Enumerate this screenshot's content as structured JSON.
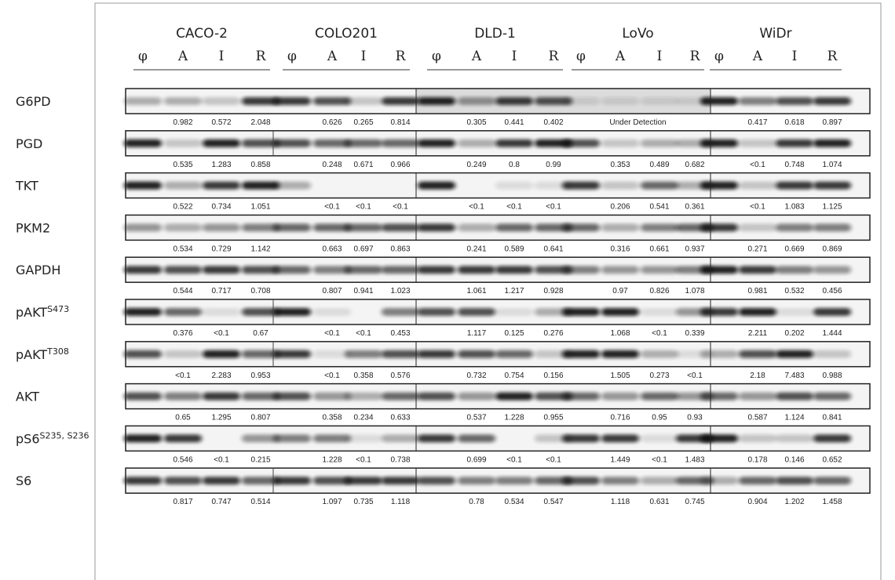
{
  "header": {
    "cell_lines": [
      {
        "name": "CACO-2",
        "lanes": [
          "φ",
          "A",
          "I",
          "R"
        ]
      },
      {
        "name": "COLO201",
        "lanes": [
          "φ",
          "A",
          "I",
          "R"
        ]
      },
      {
        "name": "DLD-1",
        "lanes": [
          "φ",
          "A",
          "I",
          "R"
        ]
      },
      {
        "name": "LoVo",
        "lanes": [
          "φ",
          "A",
          "I",
          "R"
        ]
      },
      {
        "name": "WiDr",
        "lanes": [
          "φ",
          "A",
          "I",
          "R"
        ]
      }
    ]
  },
  "rows": [
    {
      "label": "G6PD",
      "values": [
        [
          "0.982",
          "0.572",
          "2.048"
        ],
        [
          "0.626",
          "0.265",
          "0.814"
        ],
        [
          "0.305",
          "0.441",
          "0.402"
        ],
        "Under Detection",
        [
          "0.417",
          "0.618",
          "0.897"
        ]
      ]
    },
    {
      "label": "PGD",
      "values": [
        [
          "0.535",
          "1.283",
          "0.858"
        ],
        [
          "0.248",
          "0.671",
          "0.966"
        ],
        [
          "0.249",
          "0.8",
          "0.99"
        ],
        [
          "0.353",
          "0.489",
          "0.682"
        ],
        [
          "<0.1",
          "0.748",
          "1.074"
        ]
      ]
    },
    {
      "label": "TKT",
      "values": [
        [
          "0.522",
          "0.734",
          "1.051"
        ],
        [
          "<0.1",
          "<0.1",
          "<0.1"
        ],
        [
          "<0.1",
          "<0.1",
          "<0.1"
        ],
        [
          "0.206",
          "0.541",
          "0.361"
        ],
        [
          "<0.1",
          "1.083",
          "1.125"
        ]
      ]
    },
    {
      "label": "PKM2",
      "values": [
        [
          "0.534",
          "0.729",
          "1.142"
        ],
        [
          "0.663",
          "0.697",
          "0.863"
        ],
        [
          "0.241",
          "0.589",
          "0.641"
        ],
        [
          "0.316",
          "0.661",
          "0.937"
        ],
        [
          "0.271",
          "0.669",
          "0.869"
        ]
      ]
    },
    {
      "label": "GAPDH",
      "values": [
        [
          "0.544",
          "0.717",
          "0.708"
        ],
        [
          "0.807",
          "0.941",
          "1.023"
        ],
        [
          "1.061",
          "1.217",
          "0.928"
        ],
        [
          "0.97",
          "0.826",
          "1.078"
        ],
        [
          "0.981",
          "0.532",
          "0.456"
        ]
      ]
    },
    {
      "label": "pAKT",
      "sup": "S473",
      "values": [
        [
          "0.376",
          "<0.1",
          "0.67"
        ],
        [
          "<0.1",
          "<0.1",
          "0.453"
        ],
        [
          "1.117",
          "0.125",
          "0.276"
        ],
        [
          "1.068",
          "<0.1",
          "0.339"
        ],
        [
          "2.211",
          "0.202",
          "1.444"
        ]
      ]
    },
    {
      "label": "pAKT",
      "sup": "T308",
      "values": [
        [
          "<0.1",
          "2.283",
          "0.953"
        ],
        [
          "<0.1",
          "0.358",
          "0.576"
        ],
        [
          "0.732",
          "0.754",
          "0.156"
        ],
        [
          "1.505",
          "0.273",
          "<0.1"
        ],
        [
          "2.18",
          "7.483",
          "0.988"
        ]
      ]
    },
    {
      "label": "AKT",
      "values": [
        [
          "0.65",
          "1.295",
          "0.807"
        ],
        [
          "0.358",
          "0.234",
          "0.633"
        ],
        [
          "0.537",
          "1.228",
          "0.955"
        ],
        [
          "0.716",
          "0.95",
          "0.93"
        ],
        [
          "0.587",
          "1.124",
          "0.841"
        ]
      ]
    },
    {
      "label": "pS6",
      "sup": "S235, S236",
      "values": [
        [
          "0.546",
          "<0.1",
          "0.215"
        ],
        [
          "1.228",
          "<0.1",
          "0.738"
        ],
        [
          "0.699",
          "<0.1",
          "<0.1"
        ],
        [
          "1.449",
          "<0.1",
          "1.483"
        ],
        [
          "0.178",
          "0.146",
          "0.652"
        ]
      ]
    },
    {
      "label": "S6",
      "values": [
        [
          "0.817",
          "0.747",
          "0.514"
        ],
        [
          "1.097",
          "0.735",
          "1.118"
        ],
        [
          "0.78",
          "0.534",
          "0.547"
        ],
        [
          "1.118",
          "0.631",
          "0.745"
        ],
        [
          "0.904",
          "1.202",
          "1.458"
        ]
      ]
    }
  ]
}
